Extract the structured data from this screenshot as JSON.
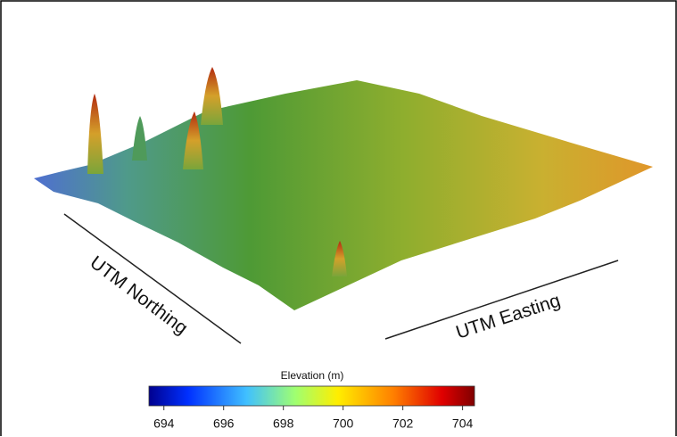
{
  "figure": {
    "y_axis_label": "UTM Northing",
    "x_axis_label": "UTM Easting",
    "colorbar": {
      "title": "Elevation (m)",
      "lim": [
        693.5,
        704.4
      ],
      "ticks": [
        694,
        696,
        698,
        700,
        702,
        704
      ]
    }
  }
}
